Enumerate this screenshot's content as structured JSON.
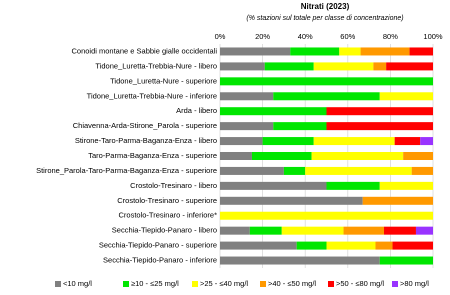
{
  "chart_data": {
    "type": "stacked-bar-horizontal",
    "title": "Nitrati (2023)",
    "subtitle": "(% stazioni sul totale per classe di concentrazione)",
    "categories": [
      "Conoidi montane e Sabbie gialle occidentali",
      "Tidone_Luretta-Trebbia-Nure - libero",
      "Tidone_Luretta-Nure - superiore",
      "Tidone_Luretta-Trebbia-Nure - inferiore",
      "Arda - libero",
      "Chiavenna-Arda-Stirone_Parola - superiore",
      "Stirone-Taro-Parma-Baganza-Enza - libero",
      "Taro-Parma-Baganza-Enza - superiore",
      "Stirone_Parola-Taro-Parma-Baganza-Enza - superiore",
      "Crostolo-Tresinaro - libero",
      "Crostolo-Tresinaro - superiore",
      "Crostolo-Tresinaro - inferiore*",
      "Secchia-Tiepido-Panaro - libero",
      "Secchia-Tiepido-Panaro - superiore",
      "Secchia-Tiepido-Panaro - inferiore"
    ],
    "series": [
      {
        "name": "<10 mg/l",
        "color": "#808080",
        "values": [
          33,
          21,
          0,
          25,
          0,
          25,
          20,
          15,
          30,
          50,
          67,
          0,
          14,
          36,
          75
        ]
      },
      {
        "name": "≥10 - ≤25 mg/l",
        "color": "#00e600",
        "values": [
          23,
          23,
          100,
          50,
          50,
          25,
          24,
          28,
          10,
          25,
          0,
          0,
          15,
          14,
          25
        ]
      },
      {
        "name": ">25 - ≤40 mg/l",
        "color": "#ffff00",
        "values": [
          10,
          28,
          0,
          25,
          0,
          0,
          38,
          43,
          50,
          25,
          0,
          100,
          29,
          23,
          0
        ]
      },
      {
        "name": ">40 - ≤50 mg/l",
        "color": "#ff9900",
        "values": [
          23,
          6,
          0,
          0,
          0,
          0,
          0,
          14,
          10,
          0,
          33,
          0,
          19,
          8,
          0
        ]
      },
      {
        "name": ">50 - ≤80 mg/l",
        "color": "#ff0000",
        "values": [
          11,
          22,
          0,
          0,
          50,
          50,
          12,
          0,
          0,
          0,
          0,
          0,
          15,
          19,
          0
        ]
      },
      {
        "name": ">80 mg/l",
        "color": "#9933ff",
        "values": [
          0,
          0,
          0,
          0,
          0,
          0,
          6,
          0,
          0,
          0,
          0,
          0,
          8,
          0,
          0
        ]
      }
    ],
    "xlim": [
      0,
      100
    ],
    "xticks": [
      {
        "value": 0,
        "label": "0%"
      },
      {
        "value": 20,
        "label": "20%"
      },
      {
        "value": 40,
        "label": "40%"
      },
      {
        "value": 60,
        "label": "60%"
      },
      {
        "value": 80,
        "label": "80%"
      },
      {
        "value": 100,
        "label": "100%"
      }
    ],
    "grid": true,
    "legend": "bottom"
  }
}
